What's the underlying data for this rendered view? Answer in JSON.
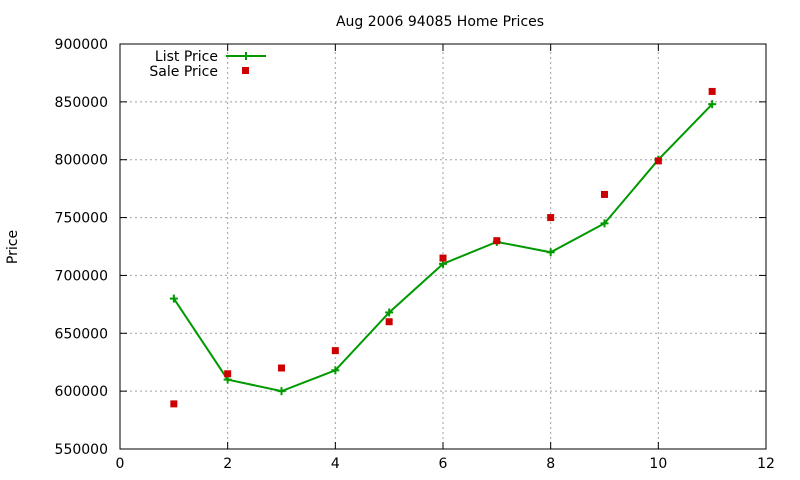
{
  "chart_data": {
    "type": "line",
    "title": "Aug 2006 94085 Home Prices",
    "xlabel": "",
    "ylabel": "Price",
    "xlim": [
      0,
      12
    ],
    "ylim": [
      550000,
      900000
    ],
    "x_ticks": [
      0,
      2,
      4,
      6,
      8,
      10,
      12
    ],
    "y_ticks": [
      550000,
      600000,
      650000,
      700000,
      750000,
      800000,
      850000,
      900000
    ],
    "x_tick_labels": [
      "0",
      "2",
      "4",
      "6",
      "8",
      "10",
      "12"
    ],
    "y_tick_labels": [
      "550000",
      "600000",
      "650000",
      "700000",
      "750000",
      "800000",
      "850000",
      "900000"
    ],
    "grid": true,
    "legend_position": "top-left",
    "series": [
      {
        "name": "List Price",
        "style": "line-plus",
        "color": "#009900",
        "x": [
          1,
          2,
          3,
          4,
          5,
          6,
          7,
          8,
          9,
          10,
          11
        ],
        "y": [
          680000,
          610000,
          600000,
          618000,
          668000,
          710000,
          729000,
          720000,
          745000,
          800000,
          848000
        ]
      },
      {
        "name": "Sale Price",
        "style": "square",
        "color": "#cc0000",
        "x": [
          1,
          2,
          3,
          4,
          5,
          6,
          7,
          8,
          9,
          10,
          11
        ],
        "y": [
          589000,
          615000,
          620000,
          635000,
          660000,
          715000,
          730000,
          750000,
          770000,
          799000,
          859000
        ]
      }
    ]
  }
}
